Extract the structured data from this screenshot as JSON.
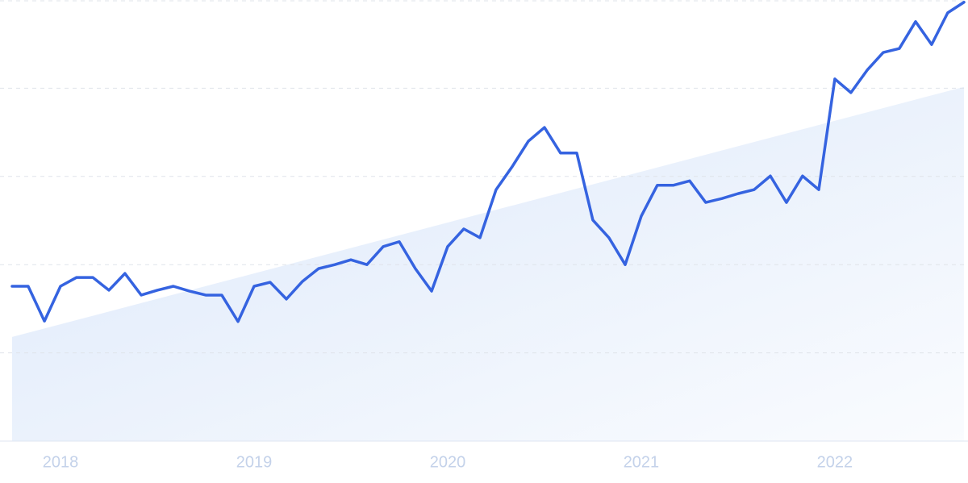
{
  "chart_data": {
    "type": "line",
    "x": [
      2017.75,
      2017.833,
      2017.917,
      2018,
      2018.083,
      2018.167,
      2018.25,
      2018.333,
      2018.417,
      2018.5,
      2018.583,
      2018.667,
      2018.75,
      2018.833,
      2018.917,
      2019,
      2019.083,
      2019.167,
      2019.25,
      2019.333,
      2019.417,
      2019.5,
      2019.583,
      2019.667,
      2019.75,
      2019.833,
      2019.917,
      2020,
      2020.083,
      2020.167,
      2020.25,
      2020.333,
      2020.417,
      2020.5,
      2020.583,
      2020.667,
      2020.75,
      2020.833,
      2020.917,
      2021,
      2021.083,
      2021.167,
      2021.25,
      2021.333,
      2021.417,
      2021.5,
      2021.583,
      2021.667,
      2021.75,
      2021.833,
      2021.917,
      2022,
      2022.083,
      2022.167,
      2022.25,
      2022.333,
      2022.417,
      2022.5,
      2022.583,
      2022.667
    ],
    "series": [
      {
        "color": "#3563e0",
        "values": [
          35.1,
          35.1,
          27.2,
          35.1,
          37.1,
          37.1,
          34.2,
          38.0,
          33.1,
          34.2,
          35.1,
          34.0,
          33.1,
          33.1,
          27.1,
          35.1,
          36.0,
          32.2,
          36.2,
          39.1,
          40.0,
          41.1,
          40.0,
          44.1,
          45.2,
          39.1,
          34.0,
          44.1,
          48.1,
          46.1,
          57.0,
          62.2,
          68.0,
          71.1,
          65.3,
          65.3,
          50.1,
          46.1,
          40.0,
          51.0,
          58.0,
          58.0,
          59.0,
          54.1,
          55.0,
          56.1,
          57.0,
          60.1,
          54.1,
          60.1,
          57.0,
          82.1,
          79.0,
          84.1,
          88.1,
          89.0,
          95.1,
          89.9,
          97.1,
          99.5
        ]
      }
    ],
    "trend": {
      "color": "#dce8fa",
      "values": [
        23.6,
        80.3
      ]
    },
    "xlim": [
      2017.75,
      2022.667
    ],
    "xticks": [
      2018,
      2019,
      2020,
      2021,
      2022
    ],
    "ylim": [
      0,
      100
    ],
    "yticks": [
      0,
      20,
      40,
      60,
      80,
      100
    ],
    "grid": true
  }
}
